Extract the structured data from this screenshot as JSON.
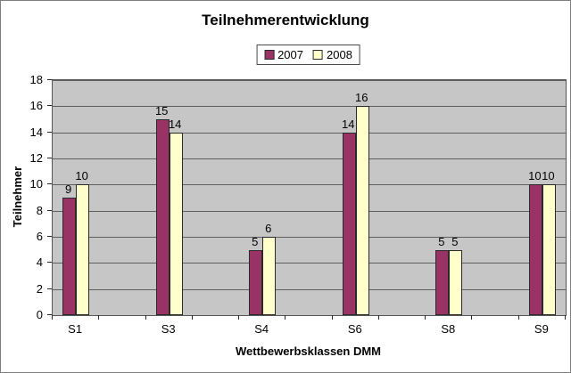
{
  "window": {
    "background": "#ffffff",
    "border_color": "#7f7f7f"
  },
  "chart_data": {
    "type": "bar",
    "title": "Teilnehmerentwicklung",
    "xlabel": "Wettbewerbsklassen DMM",
    "ylabel": "Teilnehmer",
    "categories": [
      "S1",
      "S3",
      "S4",
      "S6",
      "S8",
      "S9"
    ],
    "series": [
      {
        "name": "2007",
        "color": "#993366",
        "values": [
          9,
          15,
          5,
          14,
          5,
          10
        ]
      },
      {
        "name": "2008",
        "color": "#FFFFCC",
        "values": [
          10,
          14,
          6,
          16,
          5,
          10
        ]
      }
    ],
    "ylim": [
      0,
      18
    ],
    "yticks": [
      0,
      2,
      4,
      6,
      8,
      10,
      12,
      14,
      16,
      18
    ],
    "grid": true,
    "gridline_color": "#5f5f5f",
    "plot_background": "#c6c6c6",
    "legend_position": "top-center",
    "data_labels": true,
    "slots": 11,
    "category_slot_indices": [
      0,
      2,
      4,
      6,
      8,
      10
    ]
  }
}
